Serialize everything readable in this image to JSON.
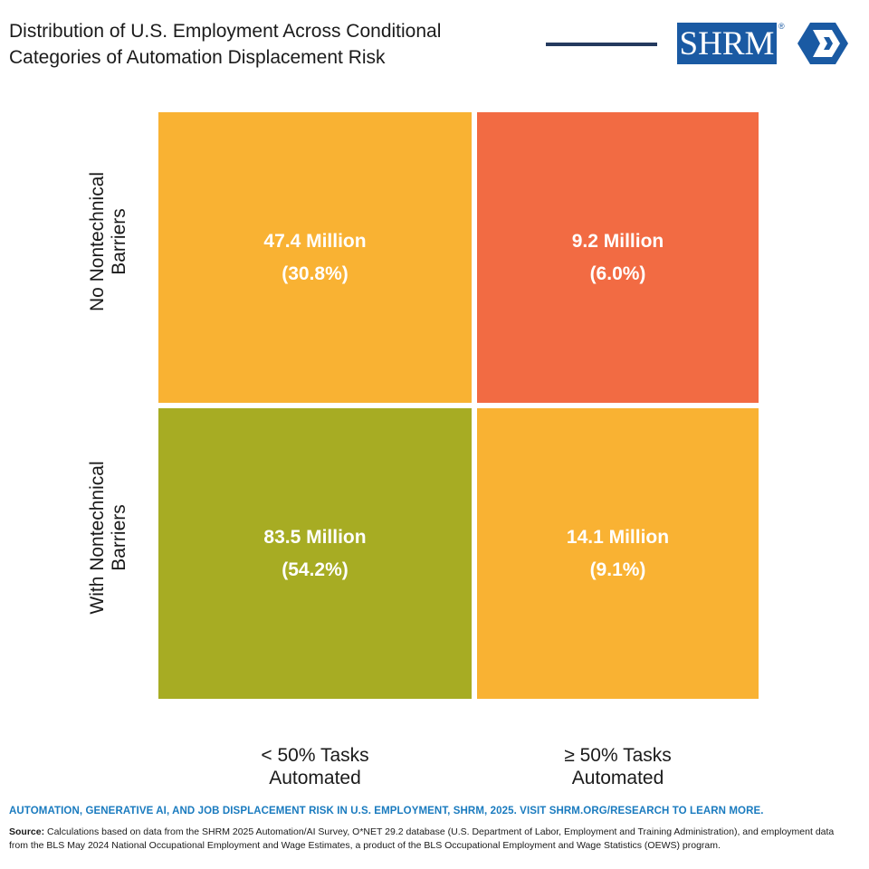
{
  "header": {
    "title_line1": "Distribution of U.S. Employment Across Conditional",
    "title_line2": "Categories of Automation Displacement Risk",
    "logo_text": "SHRM",
    "logo_reg": "®"
  },
  "chart_data": {
    "type": "heatmap",
    "title": "Distribution of U.S. Employment Across Conditional Categories of Automation Displacement Risk",
    "rows": [
      {
        "line1": "No Nontechnical",
        "line2": "Barriers"
      },
      {
        "line1": "With Nontechnical",
        "line2": "Barriers"
      }
    ],
    "columns": [
      {
        "line1": "< 50% Tasks",
        "line2": "Automated"
      },
      {
        "line1": "≥ 50% Tasks",
        "line2": "Automated"
      }
    ],
    "cells": [
      {
        "row": 0,
        "col": 0,
        "value": 47.4,
        "value_label": "47.4 Million",
        "share_label": "(30.8%)",
        "color": "#f9b233"
      },
      {
        "row": 0,
        "col": 1,
        "value": 9.2,
        "value_label": "9.2 Million",
        "share_label": "(6.0%)",
        "color": "#f26b43"
      },
      {
        "row": 1,
        "col": 0,
        "value": 83.5,
        "value_label": "83.5 Million",
        "share_label": "(54.2%)",
        "color": "#a7ac23"
      },
      {
        "row": 1,
        "col": 1,
        "value": 14.1,
        "value_label": "14.1 Million",
        "share_label": "(9.1%)",
        "color": "#f9b233"
      }
    ],
    "units": "Million workers"
  },
  "footer": {
    "report_line": "AUTOMATION, GENERATIVE AI, AND JOB DISPLACEMENT RISK IN U.S. EMPLOYMENT, SHRM, 2025. VISIT SHRM.ORG/RESEARCH TO LEARN MORE.",
    "source_label": "Source:",
    "source_text": " Calculations based on data from the SHRM 2025 Automation/AI Survey, O*NET 29.2 database (U.S. Department of Labor, Employment and Training Administration), and employment data from the BLS May 2024 National Occupational Employment and Wage Estimates, a product of the BLS Occupational Employment and Wage Statistics (OEWS) program."
  },
  "colors": {
    "rule": "#243a5e",
    "brand_blue": "#1a5aa3",
    "report_blue": "#1a7bbf"
  }
}
